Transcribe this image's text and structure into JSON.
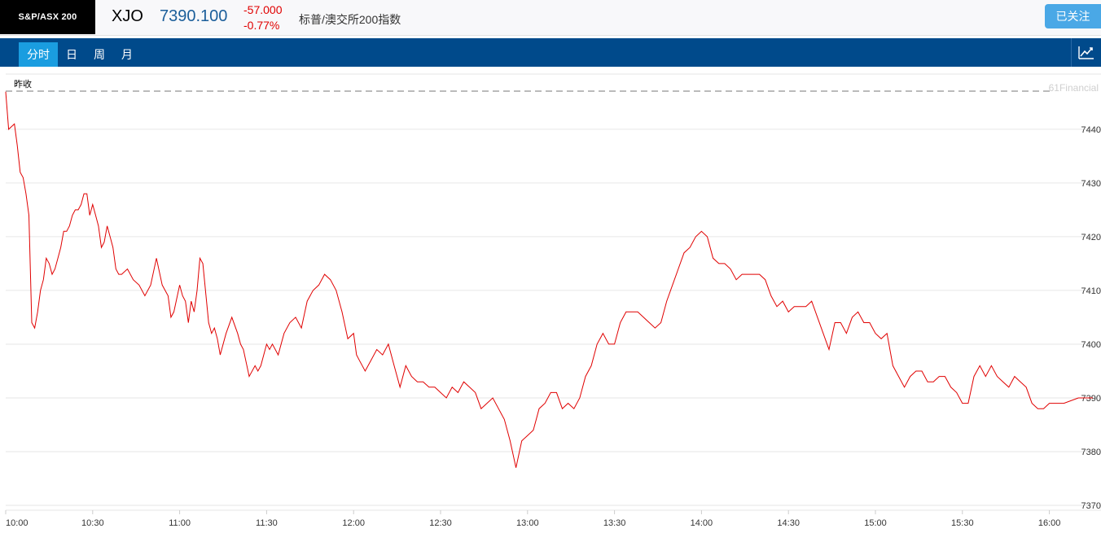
{
  "header": {
    "logo_text": "S&P/ASX 200",
    "symbol": "XJO",
    "price": "7390.100",
    "change": "-57.000",
    "change_pct": "-0.77%",
    "name": "标普/澳交所200指数",
    "follow_label": "已关注"
  },
  "tabs": [
    {
      "label": "分时",
      "active": true
    },
    {
      "label": "日",
      "active": false
    },
    {
      "label": "周",
      "active": false
    },
    {
      "label": "月",
      "active": false
    }
  ],
  "chart_icon": "line-chart-icon",
  "colors": {
    "line": "#e00000",
    "accent": "#004a8b",
    "tab_active": "#1a9de0",
    "price": "#1b5e9a"
  },
  "chart_data": {
    "type": "line",
    "prev_close_label": "昨收",
    "prev_close": 7447.1,
    "watermark": "61Financial",
    "x_ticks": [
      "10:00",
      "10:30",
      "11:00",
      "11:30",
      "12:00",
      "12:30",
      "13:00",
      "13:30",
      "14:00",
      "14:30",
      "15:00",
      "15:30",
      "16:00"
    ],
    "y_ticks": [
      7370,
      7380,
      7390,
      7400,
      7410,
      7420,
      7430,
      7440
    ],
    "ylim": [
      7370,
      7447.1
    ],
    "xlim": [
      "10:00",
      "16:15"
    ],
    "grid": true,
    "series": [
      {
        "x": [
          "10:00",
          "10:01",
          "10:03",
          "10:04",
          "10:05",
          "10:06",
          "10:07",
          "10:08",
          "10:09",
          "10:10",
          "10:11",
          "10:12",
          "10:13",
          "10:14",
          "10:15",
          "10:16",
          "10:17",
          "10:18",
          "10:19",
          "10:20",
          "10:21",
          "10:22",
          "10:23",
          "10:24",
          "10:25",
          "10:26",
          "10:27",
          "10:28",
          "10:29",
          "10:30",
          "10:31",
          "10:32",
          "10:33",
          "10:34",
          "10:35",
          "10:36",
          "10:37",
          "10:38",
          "10:39",
          "10:40",
          "10:42",
          "10:44",
          "10:46",
          "10:48",
          "10:50",
          "10:52",
          "10:54",
          "10:56",
          "10:57",
          "10:58",
          "11:00",
          "11:01",
          "11:02",
          "11:03",
          "11:04",
          "11:05",
          "11:06",
          "11:07",
          "11:08",
          "11:10",
          "11:11",
          "11:12",
          "11:13",
          "11:14",
          "11:16",
          "11:18",
          "11:20",
          "11:21",
          "11:22",
          "11:24",
          "11:26",
          "11:27",
          "11:28",
          "11:30",
          "11:31",
          "11:32",
          "11:34",
          "11:36",
          "11:38",
          "11:40",
          "11:42",
          "11:44",
          "11:46",
          "11:48",
          "11:50",
          "11:52",
          "11:54",
          "11:56",
          "11:58",
          "12:00",
          "12:01",
          "12:02",
          "12:04",
          "12:06",
          "12:08",
          "12:10",
          "12:12",
          "12:14",
          "12:16",
          "12:18",
          "12:20",
          "12:22",
          "12:24",
          "12:26",
          "12:28",
          "12:30",
          "12:32",
          "12:34",
          "12:36",
          "12:38",
          "12:40",
          "12:42",
          "12:44",
          "12:46",
          "12:48",
          "12:50",
          "12:52",
          "12:54",
          "12:56",
          "12:58",
          "13:00",
          "13:02",
          "13:03",
          "13:04",
          "13:06",
          "13:08",
          "13:10",
          "13:12",
          "13:14",
          "13:16",
          "13:18",
          "13:20",
          "13:22",
          "13:24",
          "13:26",
          "13:28",
          "13:30",
          "13:32",
          "13:34",
          "13:36",
          "13:38",
          "13:40",
          "13:42",
          "13:44",
          "13:46",
          "13:48",
          "13:50",
          "13:52",
          "13:54",
          "13:56",
          "13:58",
          "14:00",
          "14:02",
          "14:04",
          "14:06",
          "14:08",
          "14:10",
          "14:12",
          "14:14",
          "14:16",
          "14:18",
          "14:20",
          "14:22",
          "14:24",
          "14:26",
          "14:28",
          "14:30",
          "14:32",
          "14:34",
          "14:36",
          "14:38",
          "14:40",
          "14:42",
          "14:44",
          "14:46",
          "14:48",
          "14:50",
          "14:52",
          "14:54",
          "14:56",
          "14:58",
          "15:00",
          "15:02",
          "15:04",
          "15:06",
          "15:08",
          "15:10",
          "15:12",
          "15:14",
          "15:16",
          "15:18",
          "15:20",
          "15:22",
          "15:24",
          "15:26",
          "15:28",
          "15:30",
          "15:32",
          "15:34",
          "15:36",
          "15:38",
          "15:40",
          "15:42",
          "15:44",
          "15:46",
          "15:48",
          "15:50",
          "15:52",
          "15:54",
          "15:56",
          "15:58",
          "16:00",
          "16:02",
          "16:05",
          "16:10",
          "16:15"
        ],
        "y": [
          7447,
          7440,
          7441,
          7437,
          7432,
          7431,
          7428,
          7424,
          7404,
          7403,
          7406,
          7410,
          7412,
          7416,
          7415,
          7413,
          7414,
          7416,
          7418,
          7421,
          7421,
          7422,
          7424,
          7425,
          7425,
          7426,
          7428,
          7428,
          7424,
          7426,
          7424,
          7422,
          7418,
          7419,
          7422,
          7420,
          7418,
          7414,
          7413,
          7413,
          7414,
          7412,
          7411,
          7409,
          7411,
          7416,
          7411,
          7409,
          7405,
          7406,
          7411,
          7409,
          7408,
          7404,
          7408,
          7406,
          7410,
          7416,
          7415,
          7404,
          7402,
          7403,
          7401,
          7398,
          7402,
          7405,
          7402,
          7400,
          7399,
          7394,
          7396,
          7395,
          7396,
          7400,
          7399,
          7400,
          7398,
          7402,
          7404,
          7405,
          7403,
          7408,
          7410,
          7411,
          7413,
          7412,
          7410,
          7406,
          7401,
          7402,
          7398,
          7397,
          7395,
          7397,
          7399,
          7398,
          7400,
          7396,
          7392,
          7396,
          7394,
          7393,
          7393,
          7392,
          7392,
          7391,
          7390,
          7392,
          7391,
          7393,
          7392,
          7391,
          7388,
          7389,
          7390,
          7388,
          7386,
          7382,
          7377,
          7382,
          7383,
          7384,
          7386,
          7388,
          7389,
          7391,
          7391,
          7388,
          7389,
          7388,
          7390,
          7394,
          7396,
          7400,
          7402,
          7400,
          7400,
          7404,
          7406,
          7406,
          7406,
          7405,
          7404,
          7403,
          7404,
          7408,
          7411,
          7414,
          7417,
          7418,
          7420,
          7421,
          7420,
          7416,
          7415,
          7415,
          7414,
          7412,
          7413,
          7413,
          7413,
          7413,
          7412,
          7409,
          7407,
          7408,
          7406,
          7407,
          7407,
          7407,
          7408,
          7405,
          7402,
          7399,
          7404,
          7404,
          7402,
          7405,
          7406,
          7404,
          7404,
          7402,
          7401,
          7402,
          7396,
          7394,
          7392,
          7394,
          7395,
          7395,
          7393,
          7393,
          7394,
          7394,
          7392,
          7391,
          7389,
          7389,
          7394,
          7396,
          7394,
          7396,
          7394,
          7393,
          7392,
          7394,
          7393,
          7392,
          7389,
          7388,
          7388,
          7389,
          7389,
          7389,
          7390,
          7390
        ]
      }
    ]
  }
}
